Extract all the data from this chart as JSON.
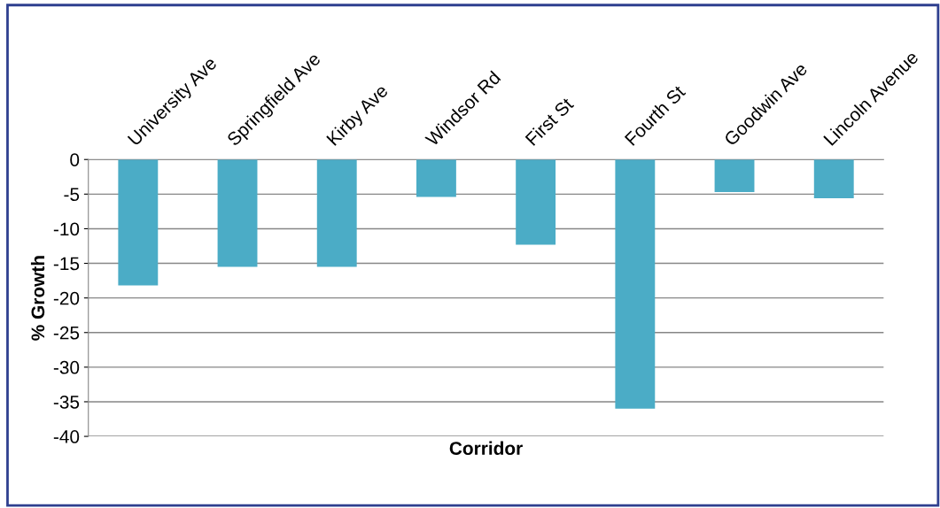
{
  "chart_data": {
    "type": "bar",
    "xlabel": "Corridor",
    "ylabel": "% Growth",
    "categories": [
      "University Ave",
      "Springfield Ave",
      "Kirby Ave",
      "Windsor Rd",
      "First St",
      "Fourth St",
      "Goodwin Ave",
      "Lincoln Avenue"
    ],
    "values": [
      -18.2,
      -15.5,
      -15.5,
      -5.4,
      -12.3,
      -36,
      -4.7,
      -5.6
    ],
    "color": "#4bacc6",
    "ylim": [
      -40,
      0
    ],
    "yticks": [
      -40,
      -35,
      -30,
      -25,
      -20,
      -15,
      -10,
      -5,
      0
    ],
    "grid": "y",
    "legend": false
  }
}
